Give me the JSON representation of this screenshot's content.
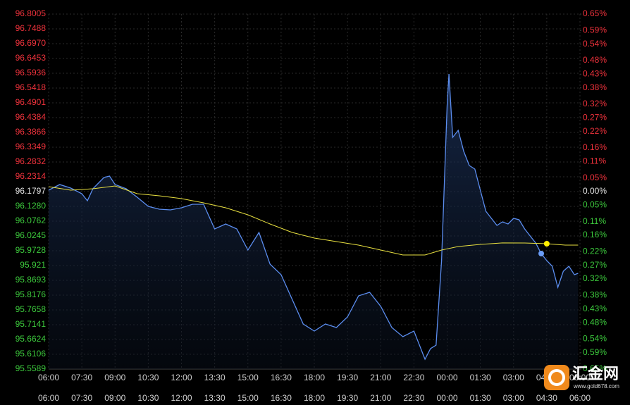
{
  "chart_data": {
    "type": "line",
    "up_color": "#f0323c",
    "down_color": "#3cc83c",
    "neutral_color": "#e6e6e6",
    "grid": true,
    "xlim": [
      0,
      1440
    ],
    "xticks": [
      {
        "value": 0,
        "label": "06:00"
      },
      {
        "value": 90,
        "label": "07:30"
      },
      {
        "value": 180,
        "label": "09:00"
      },
      {
        "value": 270,
        "label": "10:30"
      },
      {
        "value": 360,
        "label": "12:00"
      },
      {
        "value": 450,
        "label": "13:30"
      },
      {
        "value": 540,
        "label": "15:00"
      },
      {
        "value": 630,
        "label": "16:30"
      },
      {
        "value": 720,
        "label": "18:00"
      },
      {
        "value": 810,
        "label": "19:30"
      },
      {
        "value": 900,
        "label": "21:00"
      },
      {
        "value": 990,
        "label": "22:30"
      },
      {
        "value": 1080,
        "label": "00:00"
      },
      {
        "value": 1170,
        "label": "01:30"
      },
      {
        "value": 1260,
        "label": "03:00"
      },
      {
        "value": 1350,
        "label": "04:30"
      },
      {
        "value": 1440,
        "label": "06:00"
      }
    ],
    "ylim": [
      95.5589,
      96.8005
    ],
    "yticks": [
      96.8005,
      96.7488,
      {
        "value": 96.697,
        "label": "96.6970"
      },
      96.6453,
      96.5936,
      96.5418,
      96.4901,
      96.4384,
      96.3866,
      96.3349,
      96.2832,
      96.2314,
      96.1797,
      {
        "value": 96.128,
        "label": "96.1280"
      },
      96.0762,
      96.0245,
      95.9728,
      95.921,
      95.8693,
      95.8176,
      95.7658,
      95.7141,
      95.6624,
      95.6106,
      95.5589
    ],
    "y2lim": [
      -0.65,
      0.65
    ],
    "y2ticks": [
      {
        "value": 0.65,
        "label": "0.65%"
      },
      {
        "value": 0.59,
        "label": "0.59%"
      },
      {
        "value": 0.54,
        "label": "0.54%"
      },
      {
        "value": 0.48,
        "label": "0.48%"
      },
      {
        "value": 0.43,
        "label": "0.43%"
      },
      {
        "value": 0.38,
        "label": "0.38%"
      },
      {
        "value": 0.32,
        "label": "0.32%"
      },
      {
        "value": 0.27,
        "label": "0.27%"
      },
      {
        "value": 0.22,
        "label": "0.22%"
      },
      {
        "value": 0.16,
        "label": "0.16%"
      },
      {
        "value": 0.11,
        "label": "0.11%"
      },
      {
        "value": 0.05,
        "label": "0.05%"
      },
      {
        "value": 0,
        "label": "0.00%"
      },
      {
        "value": -0.05,
        "label": "0.05%"
      },
      {
        "value": -0.11,
        "label": "0.11%"
      },
      {
        "value": -0.16,
        "label": "0.16%"
      },
      {
        "value": -0.22,
        "label": "0.22%"
      },
      {
        "value": -0.27,
        "label": "0.27%"
      },
      {
        "value": -0.32,
        "label": "0.32%"
      },
      {
        "value": -0.38,
        "label": "0.38%"
      },
      {
        "value": -0.43,
        "label": "0.43%"
      },
      {
        "value": -0.48,
        "label": "0.48%"
      },
      {
        "value": -0.54,
        "label": "0.54%"
      },
      {
        "value": -0.59,
        "label": "0.59%"
      },
      {
        "value": -0.65,
        "label": "0.65%"
      }
    ],
    "series": [
      {
        "color": "#5b8def",
        "area": true,
        "x": [
          0,
          30,
          60,
          90,
          105,
          120,
          150,
          165,
          180,
          210,
          240,
          270,
          300,
          330,
          360,
          390,
          420,
          450,
          480,
          510,
          540,
          570,
          600,
          630,
          660,
          690,
          720,
          750,
          780,
          810,
          840,
          870,
          900,
          930,
          960,
          990,
          1020,
          1035,
          1050,
          1065,
          1080,
          1085,
          1095,
          1110,
          1125,
          1140,
          1155,
          1170,
          1185,
          1200,
          1215,
          1230,
          1245,
          1260,
          1275,
          1290,
          1305,
          1320,
          1335,
          1350,
          1365,
          1380,
          1395,
          1410,
          1425,
          1435
        ],
        "values": [
          96.1846,
          96.2043,
          96.192,
          96.1723,
          96.1477,
          96.1896,
          96.229,
          96.2339,
          96.2043,
          96.1896,
          96.16,
          96.128,
          96.1181,
          96.1156,
          96.123,
          96.1354,
          96.1354,
          96.0491,
          96.0664,
          96.0491,
          95.9752,
          96.0368,
          95.926,
          95.889,
          95.8028,
          95.7166,
          95.6919,
          95.7166,
          95.7042,
          95.7412,
          95.8151,
          95.8274,
          95.7781,
          95.7042,
          95.6722,
          95.6919,
          95.5934,
          95.6303,
          95.6427,
          95.9383,
          96.4802,
          96.5911,
          96.3694,
          96.394,
          96.3201,
          96.2708,
          96.2585,
          96.1846,
          96.1107,
          96.0861,
          96.0614,
          96.0738,
          96.0664,
          96.0861,
          96.0812,
          96.0491,
          96.0245,
          95.9999,
          95.9629,
          95.9383,
          95.9186,
          95.8447,
          95.9013,
          95.9186,
          95.889,
          95.8939
        ]
      },
      {
        "color": "#e8e040",
        "area": false,
        "x": [
          0,
          60,
          120,
          180,
          240,
          300,
          360,
          420,
          480,
          540,
          600,
          660,
          720,
          780,
          840,
          900,
          960,
          1020,
          1065,
          1110,
          1170,
          1230,
          1290,
          1350,
          1400,
          1435
        ],
        "values": [
          96.1969,
          96.1846,
          96.1896,
          96.1994,
          96.1723,
          96.1649,
          96.1551,
          96.1403,
          96.123,
          96.0984,
          96.0664,
          96.0368,
          96.0171,
          96.0048,
          95.9925,
          95.9752,
          95.958,
          95.958,
          95.9752,
          95.9875,
          95.9949,
          96.0,
          95.9999,
          95.9974,
          95.9925,
          95.9925
        ]
      }
    ]
  },
  "logo": {
    "name": "汇金网",
    "url": "www.gold678.com"
  }
}
